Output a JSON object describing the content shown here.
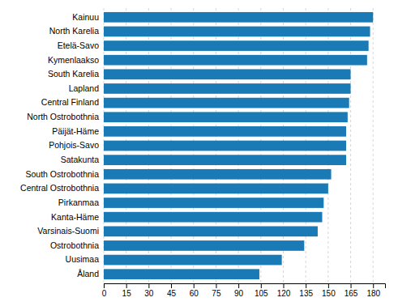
{
  "chart_data": {
    "type": "bar",
    "orientation": "horizontal",
    "categories": [
      "Kainuu",
      "North Karelia",
      "Etelä-Savo",
      "Kymenlaakso",
      "South Karelia",
      "Lapland",
      "Central Finland",
      "North Ostrobothnia",
      "Päijät-Häme",
      "Pohjois-Savo",
      "Satakunta",
      "South Ostrobothnia",
      "Central Ostrobothnia",
      "Pirkanmaa",
      "Kanta-Häme",
      "Varsinais-Suomi",
      "Ostrobothnia",
      "Uusimaa",
      "Åland"
    ],
    "values": [
      180,
      178,
      177,
      176,
      165,
      165,
      164,
      163,
      162,
      162,
      162,
      152,
      150,
      147,
      146,
      143,
      134,
      119,
      104
    ],
    "color": "#1a7ab5",
    "xlim": [
      0,
      188
    ],
    "xticks": [
      0,
      15,
      30,
      45,
      60,
      75,
      90,
      105,
      120,
      135,
      150,
      165,
      180
    ],
    "grid": true
  }
}
